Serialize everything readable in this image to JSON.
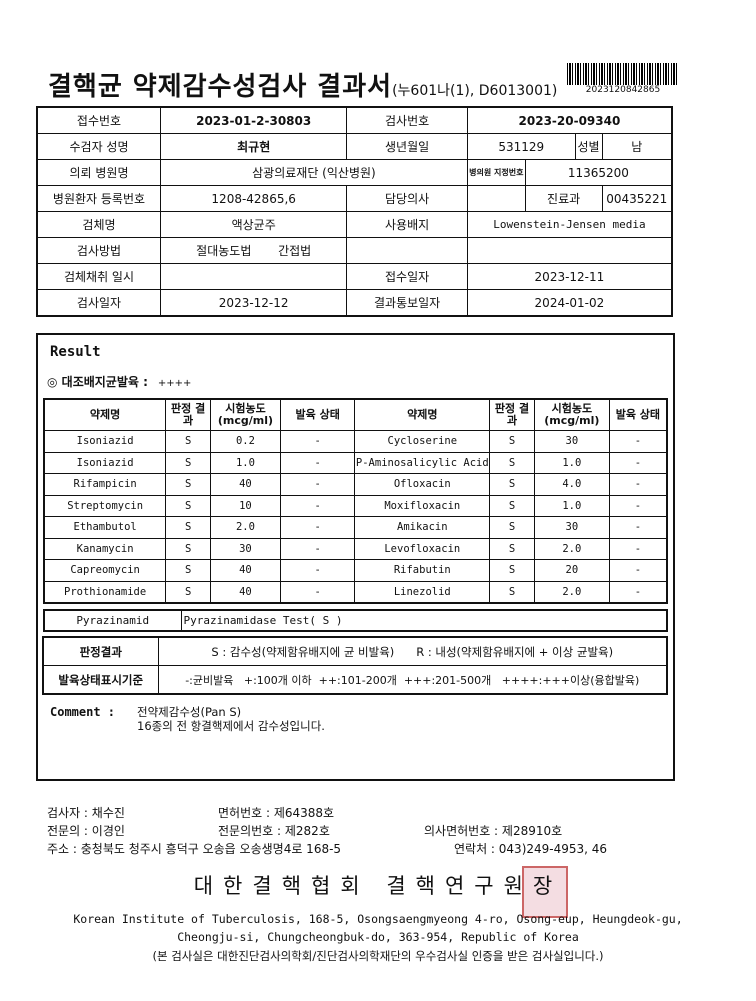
{
  "title": {
    "main": "결핵균 약제감수성검사 결과서",
    "code": "(누601나(1), D6013001)",
    "barcode_number": "2023120842865"
  },
  "info": {
    "reception_no_label": "접수번호",
    "reception_no": "2023-01-2-30803",
    "test_no_label": "검사번호",
    "test_no": "2023-20-09340",
    "name_label": "수검자 성명",
    "name": "최규현",
    "birth_label": "생년월일",
    "birth": "531129",
    "sex_label": "성별",
    "sex": "남",
    "hospital_label": "의뢰 병원명",
    "hospital": "삼광의료재단 (익산병원)",
    "hospital_code_label": "병의원 지정번호",
    "hospital_code": "11365200",
    "patient_no_label": "병원환자 등록번호",
    "patient_no": "1208-42865,6",
    "doctor_label": "담당의사",
    "doctor": "",
    "dept_label": "진료과",
    "dept": "00435221",
    "specimen_label": "검체명",
    "specimen": "액상균주",
    "medium_label": "사용배지",
    "medium": "Lowenstein-Jensen media",
    "method_label": "검사방법",
    "method1": "절대농도법",
    "method2": "간접법",
    "collect_label": "검체채취 일시",
    "collect": "",
    "received_label": "접수일자",
    "received": "2023-12-11",
    "test_date_label": "검사일자",
    "test_date": "2023-12-12",
    "report_date_label": "결과통보일자",
    "report_date": "2024-01-02"
  },
  "result": {
    "heading": "Result",
    "growth_label": "◎ 대조배지균발육 :",
    "growth_value": "++++",
    "headers": [
      "약제명",
      "판정 결과",
      "시험농도 (mcg/ml)",
      "발육 상태"
    ],
    "left": [
      [
        "Isoniazid",
        "S",
        "0.2",
        "-"
      ],
      [
        "Isoniazid",
        "S",
        "1.0",
        "-"
      ],
      [
        "Rifampicin",
        "S",
        "40",
        "-"
      ],
      [
        "Streptomycin",
        "S",
        "10",
        "-"
      ],
      [
        "Ethambutol",
        "S",
        "2.0",
        "-"
      ],
      [
        "Kanamycin",
        "S",
        "30",
        "-"
      ],
      [
        "Capreomycin",
        "S",
        "40",
        "-"
      ],
      [
        "Prothionamide",
        "S",
        "40",
        "-"
      ]
    ],
    "right": [
      [
        "Cycloserine",
        "S",
        "30",
        "-"
      ],
      [
        "P-Aminosalicylic Acid",
        "S",
        "1.0",
        "-"
      ],
      [
        "Ofloxacin",
        "S",
        "4.0",
        "-"
      ],
      [
        "Moxifloxacin",
        "S",
        "1.0",
        "-"
      ],
      [
        "Amikacin",
        "S",
        "30",
        "-"
      ],
      [
        "Levofloxacin",
        "S",
        "2.0",
        "-"
      ],
      [
        "Rifabutin",
        "S",
        "20",
        "-"
      ],
      [
        "Linezolid",
        "S",
        "2.0",
        "-"
      ]
    ],
    "pza_label": "Pyrazinamid",
    "pza_value": "Pyrazinamidase Test( S  )",
    "judge_label": "판정결과",
    "judge_s": "S : 감수성(약제함유배지에 균 비발육)",
    "judge_r": "R : 내성(약제함유배지에 + 이상 균발육)",
    "growth_std_label": "발육상태표시기준",
    "growth_std": "-:균비발육   +:100개 이하  ++:101-200개  +++:201-500개   ++++:+++이상(융합발육)",
    "comment_label": "Comment :",
    "comment_lines": [
      "전약제감수성(Pan S)",
      "16종의 전 항결핵제에서 감수성입니다."
    ]
  },
  "footer": {
    "tester": "검사자 :  채수진",
    "license": "면허번호   :  제64388호",
    "specialist": "전문의 :  이경인",
    "specialist_no": "전문의번호 :  제282호",
    "doctor_license": "의사면허번호 :  제28910호",
    "address": "주소 : 충청북도 청주시 흥덕구 오송읍 오송생명4로 168-5",
    "contact": "연락처 :  043)249-4953, 46",
    "org": "대한결핵협회 결핵연구원장",
    "en1": "Korean Institute of Tuberculosis, 168-5, Osongsaengmyeong 4-ro, Osong-eup, Heungdeok-gu,",
    "en2": "Cheongju-si, Chungcheongbuk-do, 363-954, Republic of Korea",
    "note": "(본 검사실은 대한진단검사의학회/진단검사의학재단의 우수검사실 인증을 받은 검사실입니다.)"
  }
}
